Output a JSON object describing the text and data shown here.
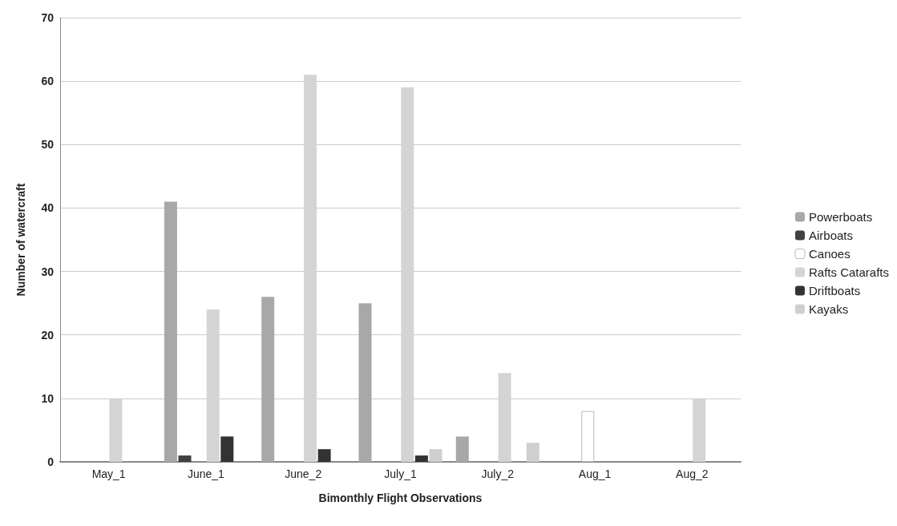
{
  "chart_data": {
    "type": "bar",
    "xlabel": "Bimonthly Flight Observations",
    "ylabel": "Number of watercraft",
    "categories": [
      "May_1",
      "June_1",
      "June_2",
      "July_1",
      "July_2",
      "Aug_1",
      "Aug_2"
    ],
    "series": [
      {
        "name": "Powerboats",
        "color": "#a8a8a8",
        "values": [
          0,
          41,
          26,
          25,
          4,
          0,
          0
        ]
      },
      {
        "name": "Airboats",
        "color": "#404040",
        "values": [
          0,
          1,
          0,
          0,
          0,
          0,
          0
        ]
      },
      {
        "name": "Canoes",
        "color": "#ffffff",
        "values": [
          0,
          0,
          0,
          0,
          0,
          8,
          0
        ]
      },
      {
        "name": "Rafts Catarafts",
        "color": "#d4d4d4",
        "values": [
          10,
          24,
          61,
          59,
          14,
          0,
          10
        ]
      },
      {
        "name": "Driftboats",
        "color": "#333333",
        "values": [
          0,
          4,
          2,
          1,
          0,
          0,
          0
        ]
      },
      {
        "name": "Kayaks",
        "color": "#cfcfcf",
        "values": [
          0,
          0,
          0,
          2,
          3,
          0,
          0
        ]
      }
    ],
    "ylim": [
      0,
      70
    ],
    "yticks": [
      0,
      10,
      20,
      30,
      40,
      50,
      60,
      70
    ],
    "grid": "y",
    "legend": "right"
  }
}
